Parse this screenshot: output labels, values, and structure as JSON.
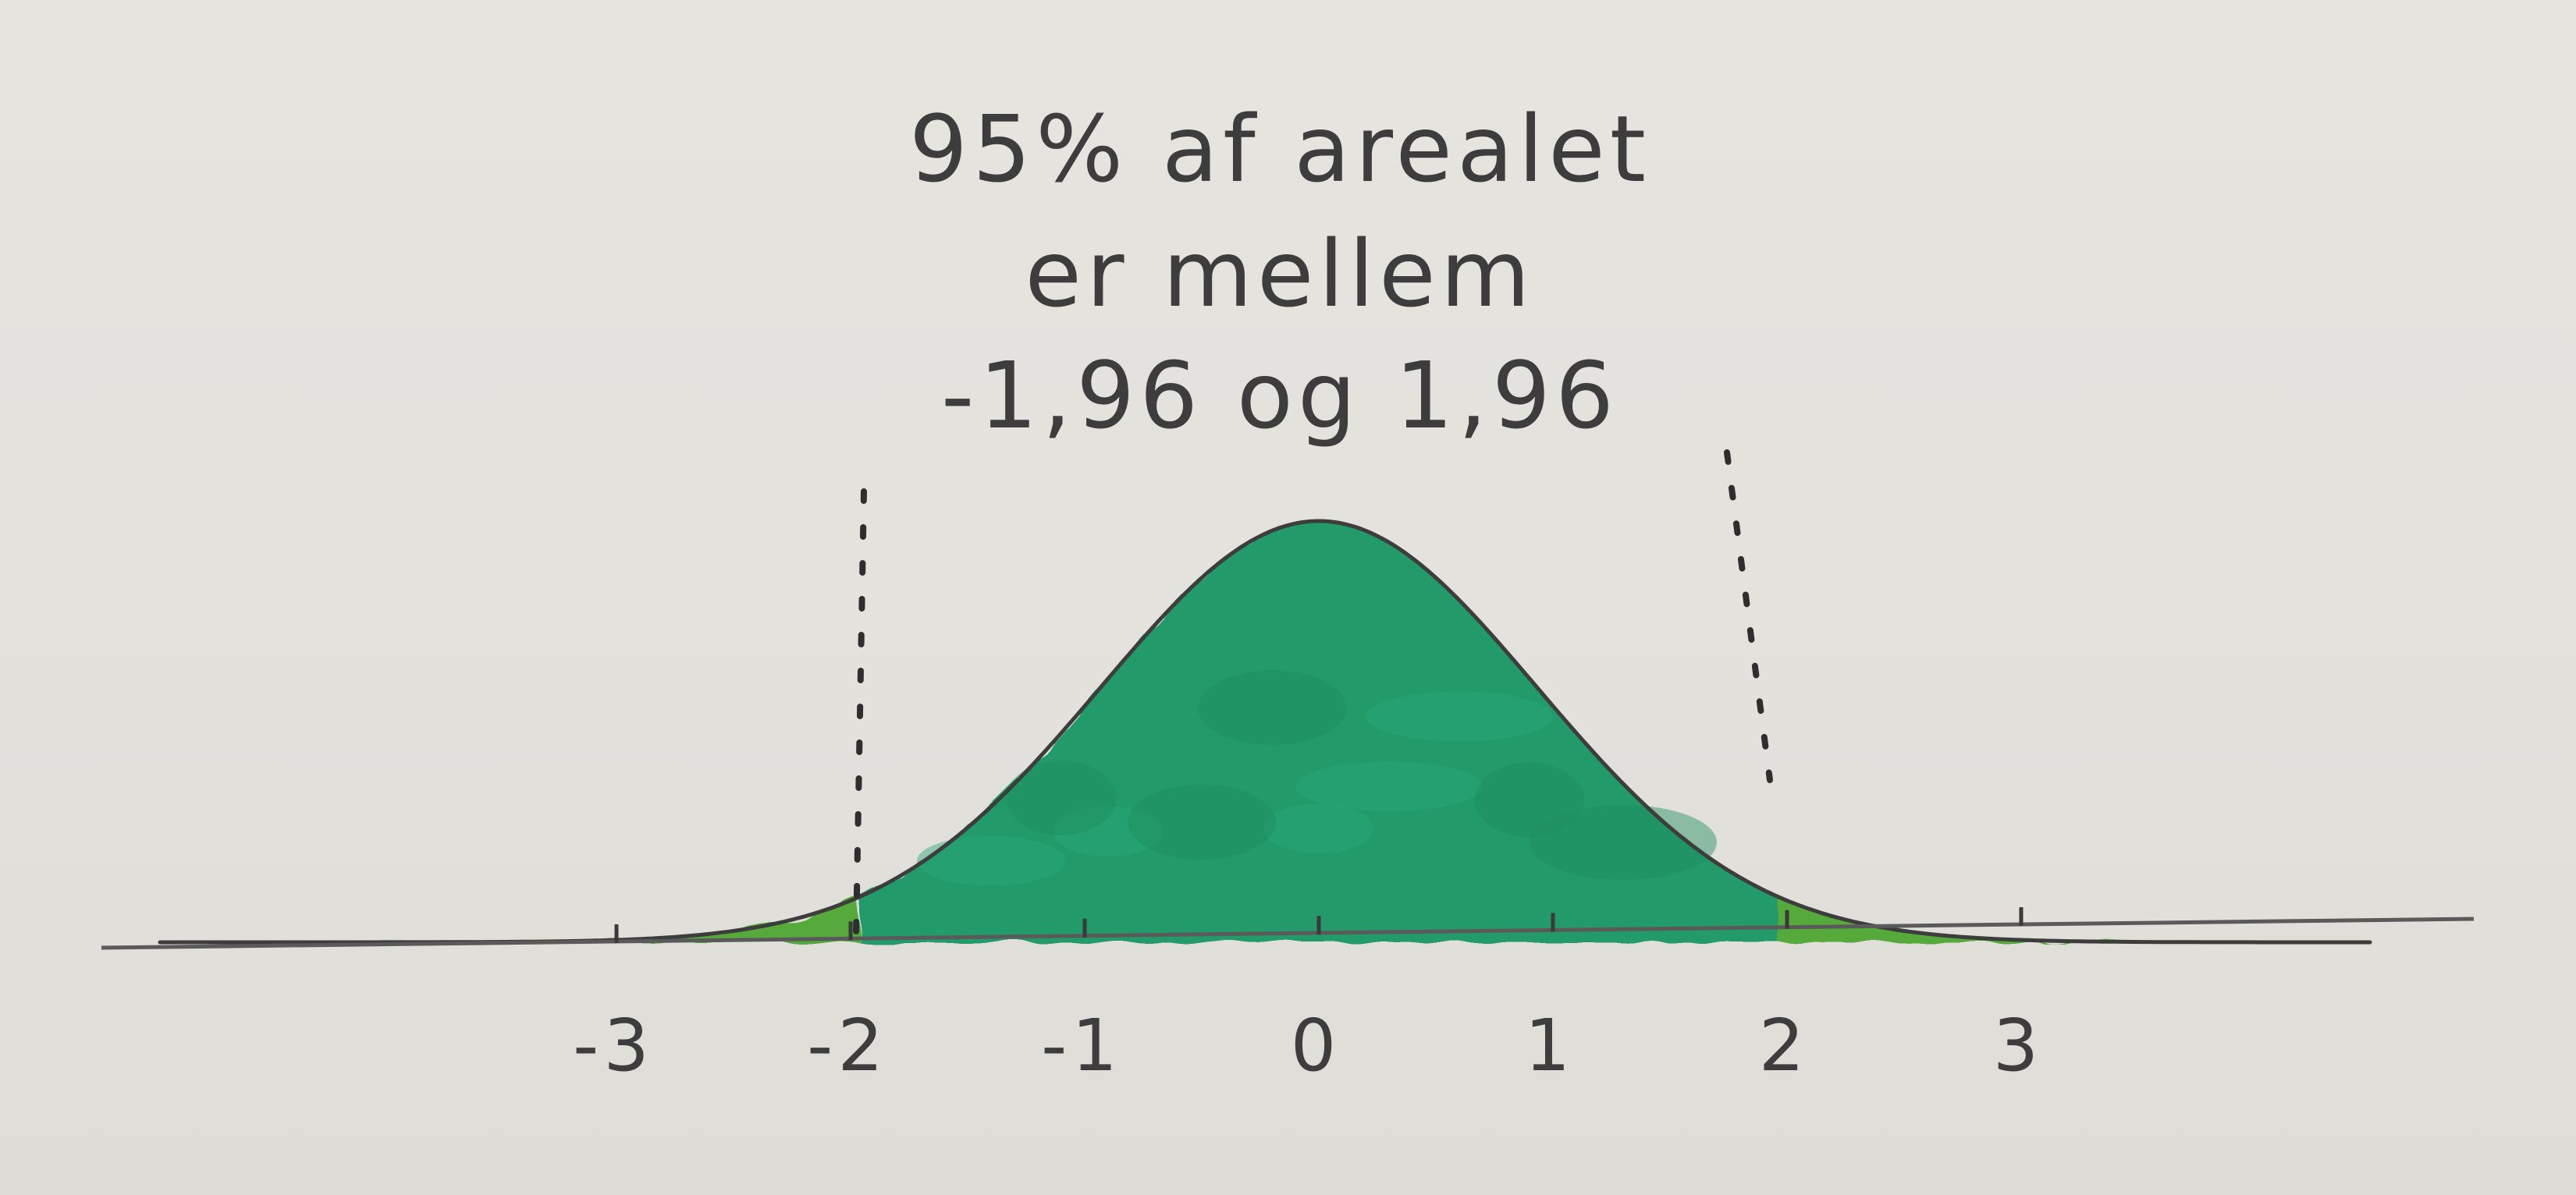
{
  "caption": {
    "line1": "95% af arealet",
    "line2": "er mellem",
    "line3": "-1,96 og 1,96"
  },
  "axis": {
    "ticks": [
      -3,
      -2,
      -1,
      0,
      1,
      2,
      3
    ],
    "tick_labels": [
      "-3",
      "-2",
      "-1",
      "0",
      "1",
      "2",
      "3"
    ]
  },
  "curve": {
    "distribution": "normal",
    "center_interval": [
      -1.96,
      1.96
    ],
    "center_area_percent": 95
  },
  "colors": {
    "paper": "#e4e2dd",
    "center_fill": "#249a6b",
    "tail_fill": "#57aa3a",
    "pencil": "#3d3d3d"
  }
}
